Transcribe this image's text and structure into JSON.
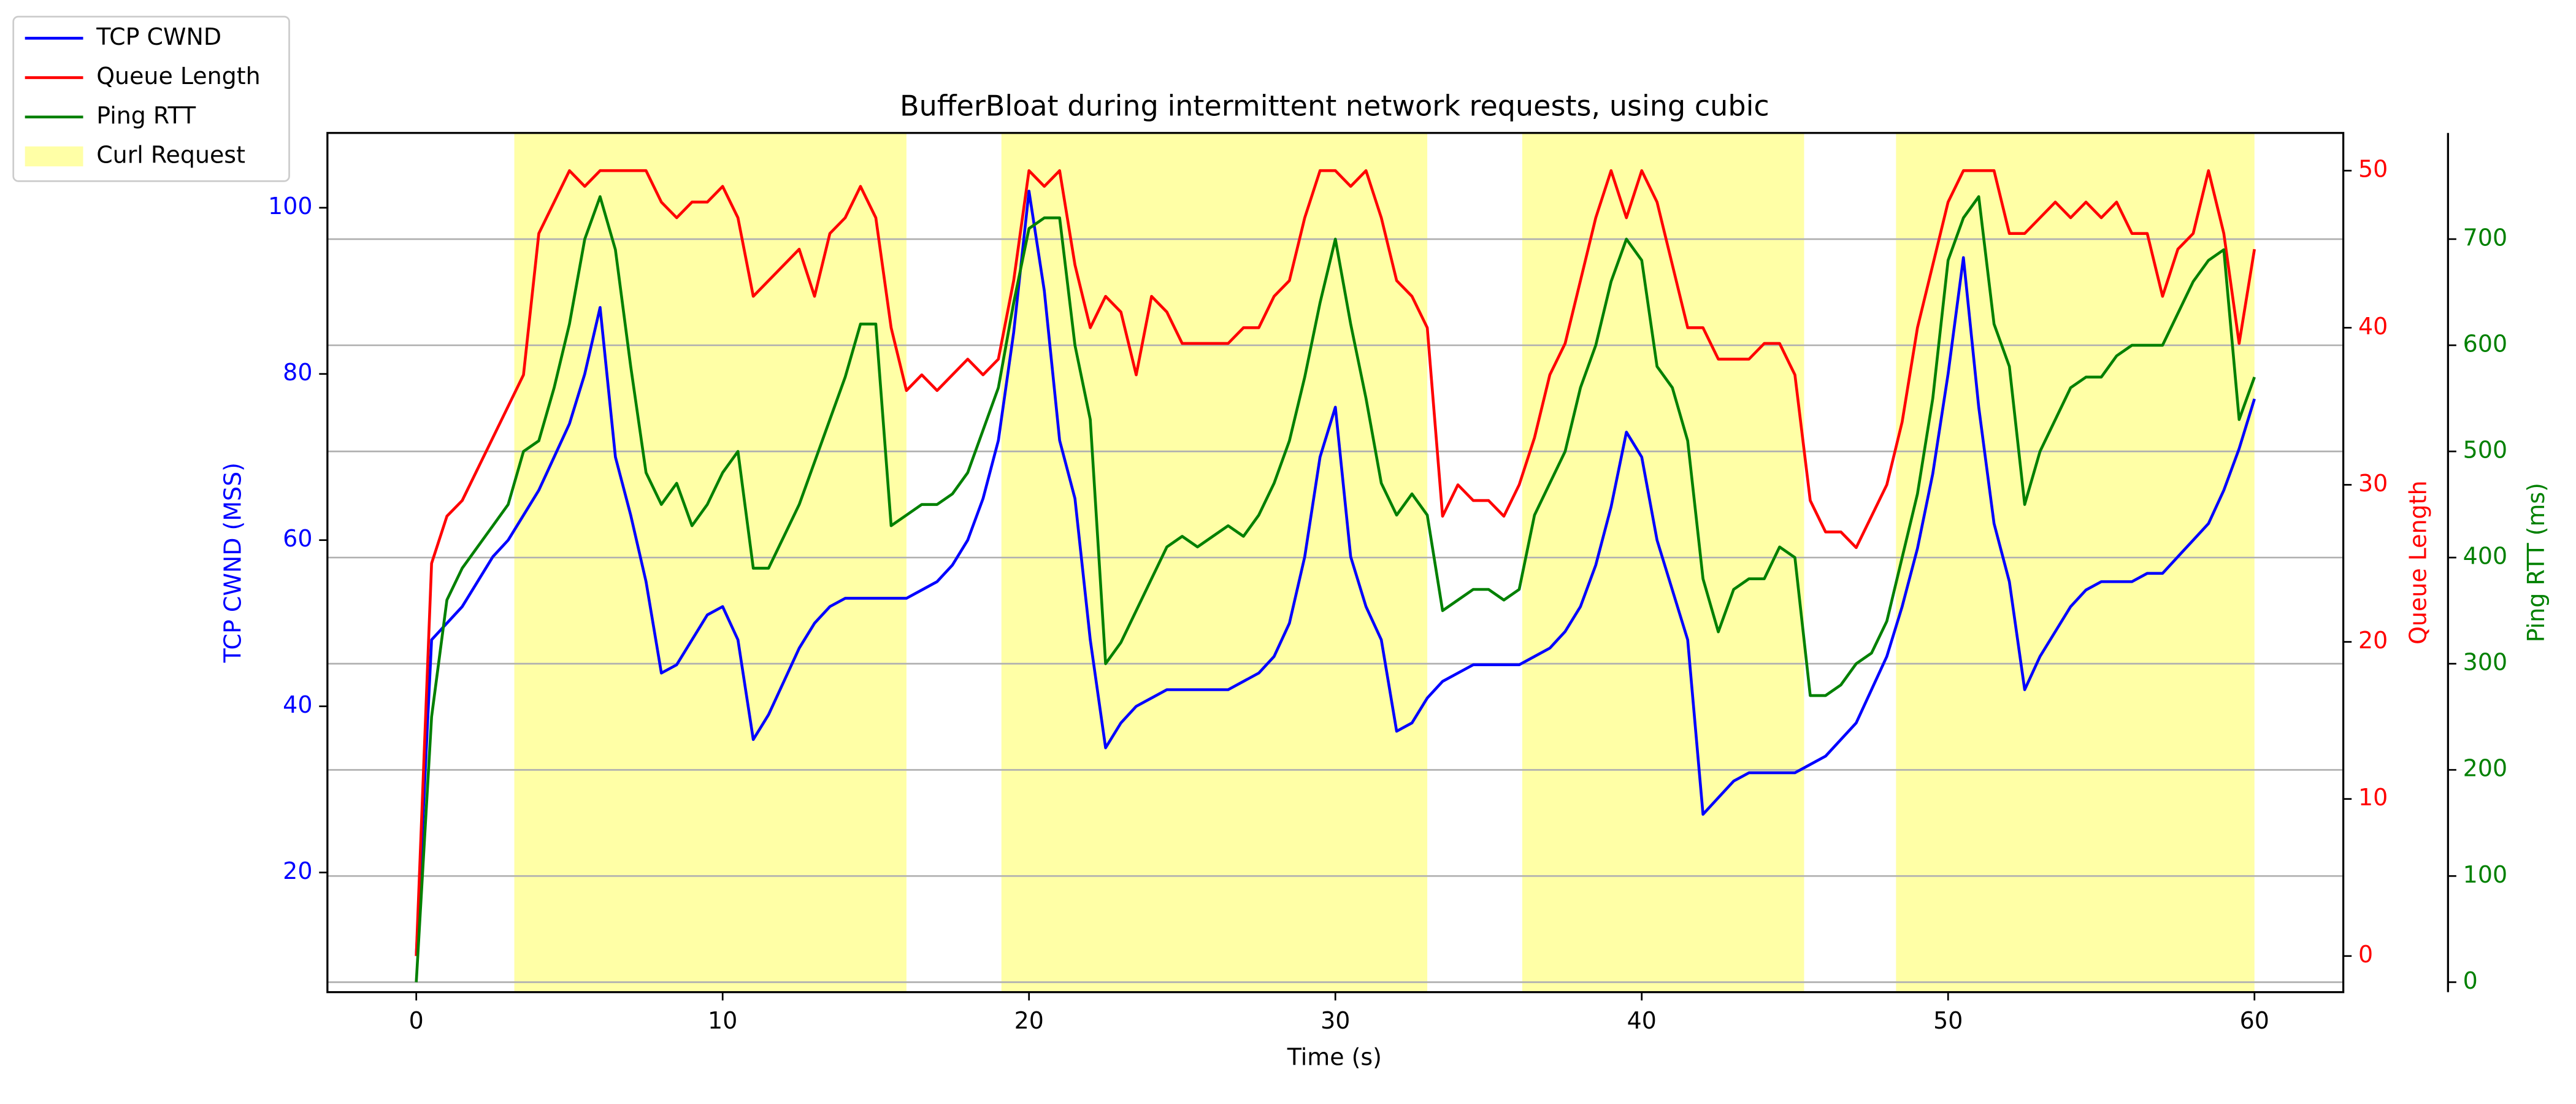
{
  "chart_data": {
    "type": "line",
    "title": "BufferBloat during intermittent network requests, using cubic",
    "x_label": "Time (s)",
    "y_label": "TCP CWND (MSS)",
    "y2_label": "Queue Length",
    "y3_label": "Ping RTT (ms)",
    "legend": "upper left",
    "grid": "y3",
    "xlim": [
      -2.9,
      62.9
    ],
    "xticks": [
      0,
      10,
      20,
      30,
      40,
      50,
      60
    ],
    "ylim": [
      5.6,
      109
    ],
    "yticks": [
      20,
      40,
      60,
      80,
      100
    ],
    "y2lim": [
      -2.3,
      52.4
    ],
    "y2ticks": [
      0,
      10,
      20,
      30,
      40,
      50
    ],
    "y3lim": [
      -9.4,
      800
    ],
    "y3ticks": [
      0,
      100,
      200,
      300,
      400,
      500,
      600,
      700
    ],
    "x": [
      0,
      0.5,
      1,
      1.5,
      2,
      2.5,
      3,
      3.5,
      4,
      4.5,
      5,
      5.5,
      6,
      6.5,
      7,
      7.5,
      8,
      8.5,
      9,
      9.5,
      10,
      10.5,
      11,
      11.5,
      12,
      12.5,
      13,
      13.5,
      14,
      14.5,
      15,
      15.5,
      16,
      16.5,
      17,
      17.5,
      18,
      18.5,
      19,
      19.5,
      20,
      20.5,
      21,
      21.5,
      22,
      22.5,
      23,
      23.5,
      24,
      24.5,
      25,
      25.5,
      26,
      26.5,
      27,
      27.5,
      28,
      28.5,
      29,
      29.5,
      30,
      30.5,
      31,
      31.5,
      32,
      32.5,
      33,
      33.5,
      34,
      34.5,
      35,
      35.5,
      36,
      36.5,
      37,
      37.5,
      38,
      38.5,
      39,
      39.5,
      40,
      40.5,
      41,
      41.5,
      42,
      42.5,
      43,
      43.5,
      44,
      44.5,
      45,
      45.5,
      46,
      46.5,
      47,
      47.5,
      48,
      48.5,
      49,
      49.5,
      50,
      50.5,
      51,
      51.5,
      52,
      52.5,
      53,
      53.5,
      54,
      54.5,
      55,
      55.5,
      56,
      56.5,
      57,
      57.5,
      58,
      58.5,
      59,
      59.5,
      60
    ],
    "series": [
      {
        "name": "TCP CWND",
        "color": "#0000ff",
        "axis": "y",
        "values": [
          10,
          48,
          50,
          52,
          55,
          58,
          60,
          63,
          66,
          70,
          74,
          80,
          88,
          70,
          63,
          55,
          44,
          45,
          48,
          51,
          52,
          48,
          36,
          39,
          43,
          47,
          50,
          52,
          53,
          53,
          53,
          53,
          53,
          54,
          55,
          57,
          60,
          65,
          72,
          85,
          102,
          90,
          72,
          65,
          48,
          35,
          38,
          40,
          41,
          42,
          42,
          42,
          42,
          42,
          43,
          44,
          46,
          50,
          58,
          70,
          76,
          58,
          52,
          48,
          37,
          38,
          41,
          43,
          44,
          45,
          45,
          45,
          45,
          46,
          47,
          49,
          52,
          57,
          64,
          73,
          70,
          60,
          54,
          48,
          27,
          29,
          31,
          32,
          32,
          32,
          32,
          33,
          34,
          36,
          38,
          42,
          46,
          52,
          59,
          68,
          80,
          94,
          76,
          62,
          55,
          42,
          46,
          49,
          52,
          54,
          55,
          55,
          55,
          56,
          56,
          58,
          60,
          62,
          66,
          71,
          77
        ]
      },
      {
        "name": "Queue Length",
        "color": "#ff0000",
        "axis": "y2",
        "values": [
          0,
          25,
          28,
          29,
          31,
          33,
          35,
          37,
          46,
          48,
          50,
          49,
          50,
          50,
          50,
          50,
          48,
          47,
          48,
          48,
          49,
          47,
          42,
          43,
          44,
          45,
          42,
          46,
          47,
          49,
          47,
          40,
          36,
          37,
          36,
          37,
          38,
          37,
          38,
          43,
          50,
          49,
          50,
          44,
          40,
          42,
          41,
          37,
          42,
          41,
          39,
          39,
          39,
          39,
          40,
          40,
          42,
          43,
          47,
          50,
          50,
          49,
          50,
          47,
          43,
          42,
          40,
          28,
          30,
          29,
          29,
          28,
          30,
          33,
          37,
          39,
          43,
          47,
          50,
          47,
          50,
          48,
          44,
          40,
          40,
          38,
          38,
          38,
          39,
          39,
          37,
          29,
          27,
          27,
          26,
          28,
          30,
          34,
          40,
          44,
          48,
          50,
          50,
          50,
          46,
          46,
          47,
          48,
          47,
          48,
          47,
          48,
          46,
          46,
          42,
          45,
          46,
          50,
          46,
          39,
          45
        ]
      },
      {
        "name": "Ping RTT",
        "color": "#008000",
        "axis": "y3",
        "values": [
          0,
          250,
          360,
          390,
          410,
          430,
          450,
          500,
          510,
          560,
          620,
          700,
          740,
          690,
          580,
          480,
          450,
          470,
          430,
          450,
          480,
          500,
          390,
          390,
          420,
          450,
          490,
          530,
          570,
          620,
          620,
          430,
          440,
          450,
          450,
          460,
          480,
          520,
          560,
          640,
          710,
          720,
          720,
          600,
          530,
          300,
          320,
          350,
          380,
          410,
          420,
          410,
          420,
          430,
          420,
          440,
          470,
          510,
          570,
          640,
          700,
          620,
          550,
          470,
          440,
          460,
          440,
          350,
          360,
          370,
          370,
          360,
          370,
          440,
          470,
          500,
          560,
          600,
          660,
          700,
          680,
          580,
          560,
          510,
          380,
          330,
          370,
          380,
          380,
          410,
          400,
          270,
          270,
          280,
          300,
          310,
          340,
          400,
          460,
          550,
          680,
          720,
          740,
          620,
          580,
          450,
          500,
          530,
          560,
          570,
          570,
          590,
          600,
          600,
          600,
          630,
          660,
          680,
          690,
          530,
          570
        ]
      }
    ],
    "shaded": {
      "name": "Curl Request",
      "color": "#ffff00",
      "alpha": 0.35,
      "intervals": [
        [
          3.2,
          16.0
        ],
        [
          19.1,
          33.0
        ],
        [
          36.1,
          45.3
        ],
        [
          48.3,
          60.0
        ]
      ]
    }
  }
}
